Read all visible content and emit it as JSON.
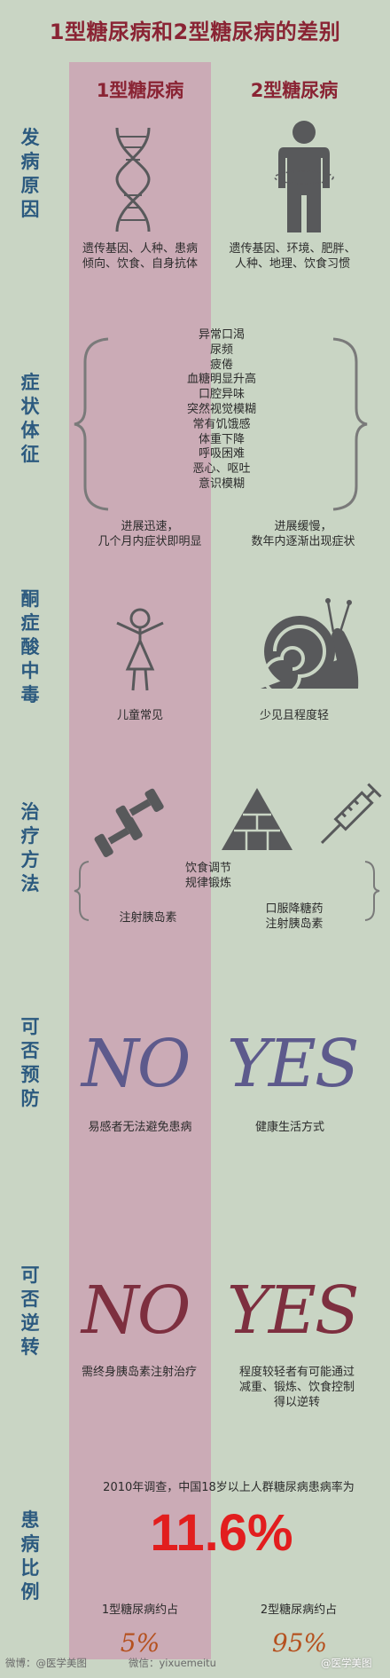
{
  "title": "1型糖尿病和2型糖尿病的差别",
  "columns": {
    "type1": "1型糖尿病",
    "type2": "2型糖尿病"
  },
  "sections": {
    "cause": {
      "label": "发病原因",
      "type1": "遗传基因、人种、患病\n倾向、饮食、自身抗体",
      "type2": "遗传基因、环境、肥胖、\n人种、地理、饮食习惯"
    },
    "symptoms": {
      "label": "症状体征",
      "list": [
        "异常口渴",
        "尿频",
        "疲倦",
        "血糖明显升高",
        "口腔异味",
        "突然视觉模糊",
        "常有饥饿感",
        "体重下降",
        "呼吸困难",
        "恶心、呕吐",
        "意识模糊"
      ],
      "type1": "进展迅速，\n几个月内症状即明显",
      "type2": "进展缓慢，\n数年内逐渐出现症状"
    },
    "ketoacidosis": {
      "label": "酮症酸中毒",
      "type1": "儿童常见",
      "type2": "少见且程度轻"
    },
    "treatment": {
      "label": "治疗方法",
      "common": "饮食调节\n规律锻炼",
      "type1": "注射胰岛素",
      "type2": "口服降糖药\n注射胰岛素"
    },
    "prevention": {
      "label": "可否预防",
      "type1_answer": "NO",
      "type2_answer": "YES",
      "type1": "易感者无法避免患病",
      "type2": "健康生活方式"
    },
    "reversal": {
      "label": "可否逆转",
      "type1_answer": "NO",
      "type2_answer": "YES",
      "type1": "需终身胰岛素注射治疗",
      "type2": "程度较轻者有可能通过\n减重、锻炼、饮食控制\n得以逆转"
    },
    "ratio": {
      "label": "患病比例",
      "survey": "2010年调查，中国18岁以上人群糖尿病患病率为",
      "rate": "11.6%",
      "type1": "1型糖尿病约占",
      "type2": "2型糖尿病约占",
      "type1_pct": "5%",
      "type2_pct": "95%"
    }
  },
  "footer": {
    "weibo": "微博：@医学美图",
    "wechat": "微信：yixuemeitu",
    "watermark": "@医学美图"
  },
  "colors": {
    "background": "#c9d5c4",
    "band": "#cbabb6",
    "title": "#8a2434",
    "section_label": "#2c5a7f",
    "rate": "#e21e1e",
    "percent": "#b5511f",
    "icon": "#58595b"
  },
  "icons": [
    "dna-icon",
    "person-icon",
    "girl-icon",
    "snail-icon",
    "dumbbell-icon",
    "pyramid-icon",
    "syringe-icon"
  ]
}
